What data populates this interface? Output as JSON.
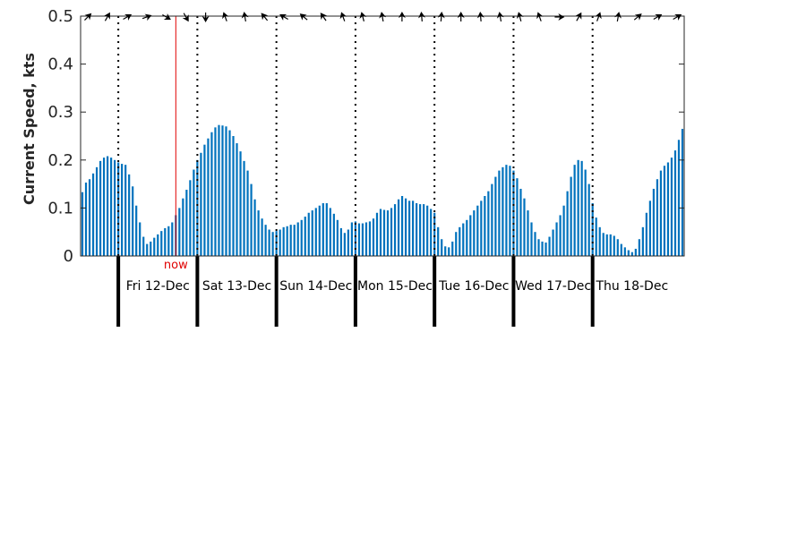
{
  "chart_data": {
    "type": "bar",
    "title": "",
    "xlabel": "",
    "ylabel": "Current Speed, kts",
    "ylim": [
      0,
      0.5
    ],
    "yticks": [
      {
        "value": 0,
        "label": "0"
      },
      {
        "value": 0.1,
        "label": "0.1"
      },
      {
        "value": 0.2,
        "label": "0.2"
      },
      {
        "value": 0.3,
        "label": "0.3"
      },
      {
        "value": 0.4,
        "label": "0.4"
      },
      {
        "value": 0.5,
        "label": "0.5"
      }
    ],
    "grid": false,
    "bar_color": "#0072BD",
    "day_boundary_index": [
      10,
      32,
      54,
      76,
      98,
      120,
      142
    ],
    "days": [
      "Fri 12-Dec",
      "Sat 13-Dec",
      "Sun 14-Dec",
      "Mon 15-Dec",
      "Tue 16-Dec",
      "Wed 17-Dec",
      "Thu 18-Dec"
    ],
    "now": {
      "label": "now",
      "index": 26.5,
      "color": "#e00000"
    },
    "values": [
      0.133,
      0.153,
      0.16,
      0.172,
      0.185,
      0.198,
      0.205,
      0.208,
      0.205,
      0.2,
      0.195,
      0.192,
      0.19,
      0.17,
      0.145,
      0.105,
      0.07,
      0.04,
      0.025,
      0.03,
      0.038,
      0.045,
      0.052,
      0.058,
      0.062,
      0.07,
      0.085,
      0.1,
      0.12,
      0.138,
      0.158,
      0.18,
      0.2,
      0.215,
      0.232,
      0.245,
      0.258,
      0.268,
      0.273,
      0.272,
      0.27,
      0.262,
      0.25,
      0.235,
      0.218,
      0.198,
      0.178,
      0.15,
      0.118,
      0.095,
      0.078,
      0.065,
      0.055,
      0.05,
      0.052,
      0.055,
      0.06,
      0.062,
      0.065,
      0.065,
      0.07,
      0.075,
      0.082,
      0.09,
      0.095,
      0.1,
      0.105,
      0.11,
      0.11,
      0.1,
      0.088,
      0.075,
      0.058,
      0.048,
      0.055,
      0.07,
      0.072,
      0.068,
      0.068,
      0.07,
      0.072,
      0.078,
      0.09,
      0.098,
      0.096,
      0.095,
      0.1,
      0.108,
      0.118,
      0.125,
      0.12,
      0.115,
      0.115,
      0.11,
      0.108,
      0.108,
      0.105,
      0.098,
      0.09,
      0.06,
      0.035,
      0.02,
      0.018,
      0.03,
      0.05,
      0.06,
      0.068,
      0.075,
      0.085,
      0.095,
      0.105,
      0.115,
      0.125,
      0.135,
      0.15,
      0.165,
      0.178,
      0.185,
      0.19,
      0.188,
      0.178,
      0.162,
      0.14,
      0.12,
      0.095,
      0.07,
      0.05,
      0.035,
      0.03,
      0.028,
      0.04,
      0.055,
      0.07,
      0.085,
      0.105,
      0.135,
      0.165,
      0.19,
      0.2,
      0.198,
      0.18,
      0.15,
      0.11,
      0.08,
      0.06,
      0.048,
      0.045,
      0.045,
      0.042,
      0.035,
      0.025,
      0.018,
      0.012,
      0.008,
      0.015,
      0.035,
      0.06,
      0.09,
      0.115,
      0.14,
      0.16,
      0.178,
      0.188,
      0.195,
      0.205,
      0.22,
      0.242,
      0.265
    ],
    "direction_arrows_deg": [
      315,
      300,
      330,
      340,
      30,
      60,
      90,
      250,
      260,
      230,
      210,
      220,
      235,
      250,
      255,
      260,
      270,
      265,
      275,
      270,
      265,
      260,
      255,
      250,
      0,
      300,
      290,
      280,
      320,
      330,
      330
    ]
  }
}
